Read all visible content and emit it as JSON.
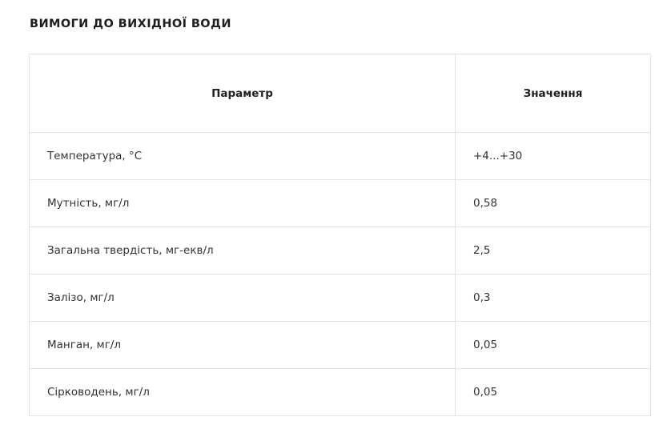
{
  "title": "ВИМОГИ ДО ВИХІДНОЇ ВОДИ",
  "table": {
    "headers": [
      "Параметр",
      "Значення"
    ],
    "rows": [
      [
        "Температура, °С",
        "+4...+30"
      ],
      [
        "Мутність, мг/л",
        "0,58"
      ],
      [
        "Загальна твердість, мг-екв/л",
        "2,5"
      ],
      [
        "Залізо, мг/л",
        "0,3"
      ],
      [
        "Манган, мг/л",
        "0,05"
      ],
      [
        "Сірководень, мг/л",
        "0,05"
      ]
    ]
  }
}
